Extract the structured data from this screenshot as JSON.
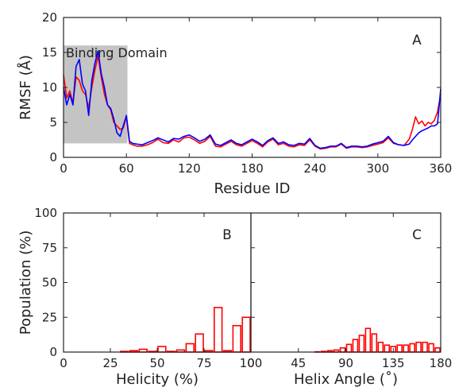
{
  "chart_data": [
    {
      "panel": "A",
      "type": "line",
      "xlabel": "Residue ID",
      "ylabel": "RMSF (Å)",
      "xlim": [
        0,
        360
      ],
      "ylim": [
        0,
        20
      ],
      "xticks": [
        "0",
        "60",
        "120",
        "180",
        "240",
        "300",
        "360"
      ],
      "yticks": [
        "0",
        "5",
        "10",
        "15",
        "20"
      ],
      "annotation": {
        "label": "Binding Domain",
        "x_range": [
          0,
          61
        ],
        "y_range": [
          2,
          16
        ],
        "color": "#c4c4c4"
      },
      "series": [
        {
          "color": "#ff0000",
          "x": [
            0,
            3,
            6,
            9,
            12,
            15,
            18,
            21,
            24,
            27,
            30,
            33,
            36,
            39,
            42,
            45,
            48,
            51,
            54,
            57,
            60,
            63,
            66,
            70,
            75,
            80,
            85,
            90,
            95,
            100,
            105,
            110,
            115,
            120,
            125,
            130,
            135,
            140,
            145,
            150,
            155,
            160,
            165,
            170,
            175,
            180,
            185,
            190,
            195,
            200,
            205,
            210,
            215,
            220,
            225,
            230,
            235,
            240,
            245,
            250,
            255,
            260,
            265,
            270,
            275,
            280,
            285,
            290,
            295,
            300,
            305,
            310,
            315,
            320,
            325,
            330,
            333,
            336,
            339,
            342,
            345,
            348,
            351,
            354,
            357,
            360
          ],
          "y": [
            11.8,
            8.5,
            9.5,
            7.8,
            11.5,
            11.0,
            9.5,
            9.0,
            7.0,
            10.0,
            12.5,
            14.5,
            11.5,
            9.0,
            7.5,
            6.8,
            5.0,
            4.5,
            4.0,
            4.2,
            5.8,
            2.0,
            1.8,
            1.6,
            1.6,
            1.8,
            2.1,
            2.6,
            2.1,
            2.0,
            2.5,
            2.2,
            2.8,
            2.9,
            2.5,
            2.0,
            2.3,
            3.0,
            1.6,
            1.5,
            1.9,
            2.3,
            1.8,
            1.6,
            2.0,
            2.4,
            2.0,
            1.5,
            2.2,
            2.6,
            1.8,
            2.0,
            1.6,
            1.5,
            1.8,
            1.7,
            2.5,
            1.6,
            1.2,
            1.3,
            1.5,
            1.5,
            1.9,
            1.3,
            1.5,
            1.5,
            1.4,
            1.5,
            1.7,
            1.9,
            2.1,
            2.8,
            2.0,
            1.8,
            1.7,
            2.6,
            4.0,
            5.8,
            4.8,
            5.2,
            4.5,
            5.0,
            4.8,
            5.3,
            6.5,
            9.0
          ]
        },
        {
          "color": "#0000ff",
          "x": [
            0,
            3,
            6,
            9,
            12,
            15,
            18,
            21,
            24,
            27,
            30,
            33,
            36,
            39,
            42,
            45,
            48,
            51,
            54,
            57,
            60,
            63,
            66,
            70,
            75,
            80,
            85,
            90,
            95,
            100,
            105,
            110,
            115,
            120,
            125,
            130,
            135,
            140,
            145,
            150,
            155,
            160,
            165,
            170,
            175,
            180,
            185,
            190,
            195,
            200,
            205,
            210,
            215,
            220,
            225,
            230,
            235,
            240,
            245,
            250,
            255,
            260,
            265,
            270,
            275,
            280,
            285,
            290,
            295,
            300,
            305,
            310,
            315,
            320,
            325,
            330,
            333,
            336,
            339,
            342,
            345,
            348,
            351,
            354,
            357,
            360
          ],
          "y": [
            10.0,
            7.5,
            9.0,
            7.5,
            13.0,
            14.0,
            10.5,
            9.5,
            6.0,
            11.0,
            13.5,
            15.2,
            12.0,
            10.0,
            7.5,
            7.0,
            5.5,
            3.5,
            3.0,
            4.5,
            6.0,
            2.3,
            2.0,
            1.9,
            1.8,
            2.1,
            2.4,
            2.8,
            2.5,
            2.2,
            2.7,
            2.6,
            3.0,
            3.2,
            2.8,
            2.3,
            2.6,
            3.2,
            1.9,
            1.7,
            2.1,
            2.5,
            2.0,
            1.8,
            2.2,
            2.6,
            2.2,
            1.7,
            2.4,
            2.8,
            2.0,
            2.2,
            1.8,
            1.7,
            2.0,
            1.9,
            2.7,
            1.7,
            1.3,
            1.4,
            1.6,
            1.6,
            2.0,
            1.4,
            1.6,
            1.6,
            1.5,
            1.6,
            1.9,
            2.1,
            2.3,
            3.0,
            2.1,
            1.8,
            1.7,
            1.9,
            2.5,
            3.0,
            3.5,
            3.8,
            4.0,
            4.2,
            4.5,
            4.5,
            4.8,
            9.8
          ]
        }
      ]
    },
    {
      "panel": "B",
      "type": "bar",
      "xlabel": "Helicity (%)",
      "ylabel": "Population (%)",
      "xlim": [
        0,
        100
      ],
      "ylim": [
        0,
        100
      ],
      "xticks": [
        "0",
        "25",
        "50",
        "75",
        "100"
      ],
      "yticks": [
        "0",
        "25",
        "50",
        "75",
        "100"
      ],
      "bin_width": 5,
      "bin_starts": [
        30,
        35,
        40,
        45,
        50,
        55,
        60,
        65,
        70,
        75,
        80,
        85,
        90,
        95
      ],
      "values": [
        0.5,
        1,
        2,
        0.5,
        4,
        0.5,
        1.5,
        6,
        13,
        1,
        32,
        1,
        19,
        25
      ],
      "color": "#ff0000"
    },
    {
      "panel": "C",
      "type": "bar",
      "xlabel": "Helix Angle (˚)",
      "ylabel": "",
      "xlim": [
        0,
        180
      ],
      "ylim": [
        0,
        100
      ],
      "xticks": [
        "0",
        "45",
        "90",
        "135",
        "180"
      ],
      "bin_width": 6,
      "bin_starts": [
        0,
        6,
        12,
        18,
        24,
        30,
        36,
        42,
        48,
        54,
        60,
        66,
        72,
        78,
        84,
        90,
        96,
        102,
        108,
        114,
        120,
        126,
        132,
        138,
        144,
        150,
        156,
        162,
        168,
        174
      ],
      "values": [
        0,
        0,
        0,
        0,
        0,
        0,
        0,
        0,
        0,
        0,
        0.2,
        0.5,
        1,
        1.5,
        3,
        5.5,
        9,
        12,
        17,
        13,
        7,
        5,
        4,
        5,
        5,
        6,
        7,
        7,
        6,
        3
      ],
      "color": "#ff0000"
    }
  ]
}
